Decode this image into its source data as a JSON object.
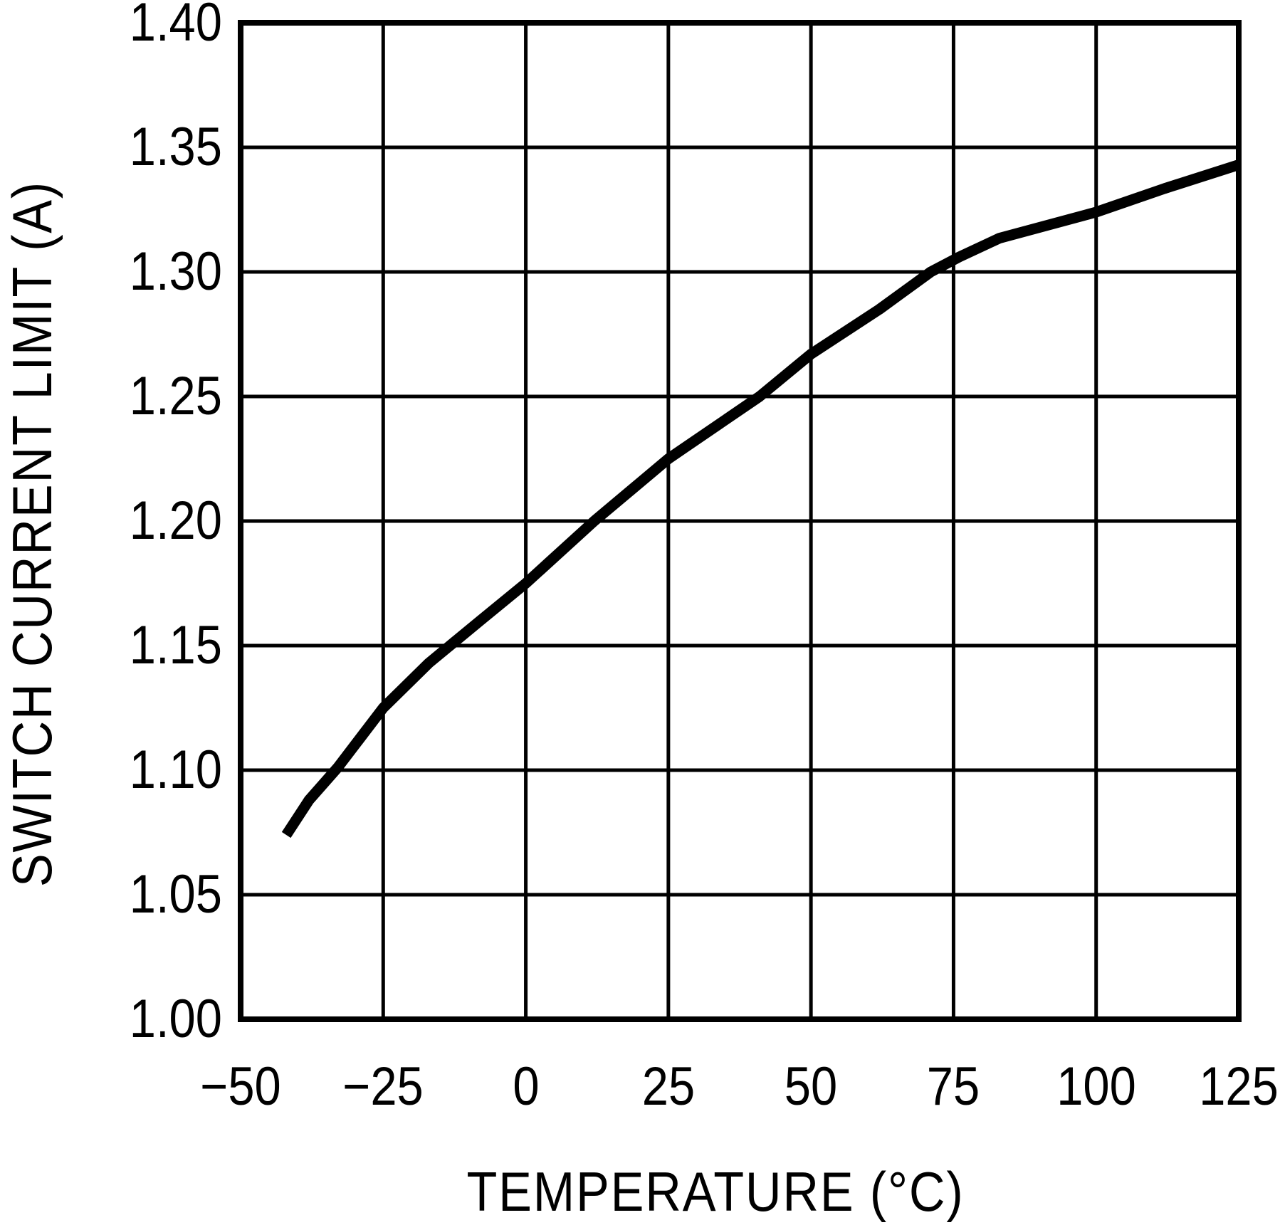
{
  "figure": {
    "background": "#ffffff",
    "ink_color": "#000000"
  },
  "chart_data": {
    "type": "line",
    "title": "",
    "xlabel": "TEMPERATURE (°C)",
    "ylabel": "SWITCH CURRENT LIMIT (A)",
    "xlim": [
      -50,
      125
    ],
    "ylim": [
      1.0,
      1.4
    ],
    "grid": true,
    "legend_position": "none",
    "x_ticks": [
      -50,
      -25,
      0,
      25,
      50,
      75,
      100,
      125
    ],
    "x_tick_labels": [
      "−50",
      "−25",
      "0",
      "25",
      "50",
      "75",
      "100",
      "125"
    ],
    "y_ticks": [
      1.0,
      1.05,
      1.1,
      1.15,
      1.2,
      1.25,
      1.3,
      1.35,
      1.4
    ],
    "y_tick_labels": [
      "1.00",
      "1.05",
      "1.10",
      "1.15",
      "1.20",
      "1.25",
      "1.30",
      "1.35",
      "1.40"
    ],
    "series": [
      {
        "name": "switch current limit",
        "color": "#000000",
        "points": [
          [
            -42,
            1.074
          ],
          [
            -38,
            1.088
          ],
          [
            -33,
            1.101
          ],
          [
            -25,
            1.125
          ],
          [
            -17,
            1.143
          ],
          [
            -8,
            1.16
          ],
          [
            0,
            1.175
          ],
          [
            12,
            1.2
          ],
          [
            25,
            1.225
          ],
          [
            41,
            1.25
          ],
          [
            50,
            1.267
          ],
          [
            62,
            1.285
          ],
          [
            71,
            1.3
          ],
          [
            76,
            1.306
          ],
          [
            83,
            1.3135
          ],
          [
            100,
            1.324
          ],
          [
            112,
            1.3335
          ],
          [
            125,
            1.343
          ]
        ]
      }
    ]
  }
}
